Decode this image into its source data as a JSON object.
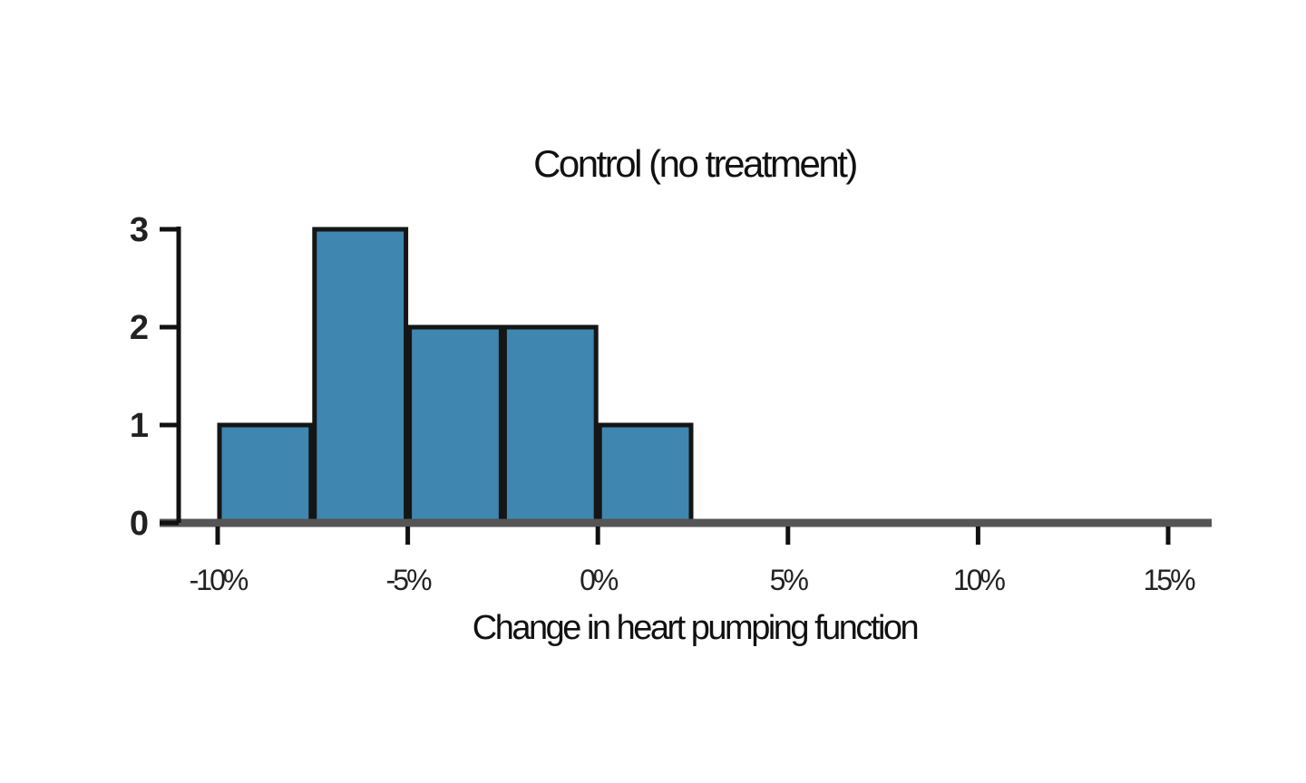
{
  "chart_data": {
    "type": "bar",
    "title": "Control (no treatment)",
    "xlabel": "Change in heart pumping function",
    "ylabel": "",
    "bin_edges": [
      -10,
      -7.5,
      -5,
      -2.5,
      0,
      2.5
    ],
    "values": [
      1,
      3,
      2,
      2,
      1
    ],
    "xlim": [
      -10,
      15
    ],
    "ylim": [
      0,
      3
    ],
    "x_ticks": [
      {
        "value": -10,
        "label": "-10%"
      },
      {
        "value": -5,
        "label": "-5%"
      },
      {
        "value": 0,
        "label": "0%"
      },
      {
        "value": 5,
        "label": "5%"
      },
      {
        "value": 10,
        "label": "10%"
      },
      {
        "value": 15,
        "label": "15%"
      }
    ],
    "y_ticks": [
      {
        "value": 0,
        "label": "0"
      },
      {
        "value": 1,
        "label": "1"
      },
      {
        "value": 2,
        "label": "2"
      },
      {
        "value": 3,
        "label": "3"
      }
    ],
    "grid": false,
    "legend": "none",
    "colors": {
      "bar_fill": "#3f86b0",
      "bar_stroke": "#151515",
      "axis": "#111111",
      "baseline": "#555555",
      "background": "#ffffff"
    }
  }
}
